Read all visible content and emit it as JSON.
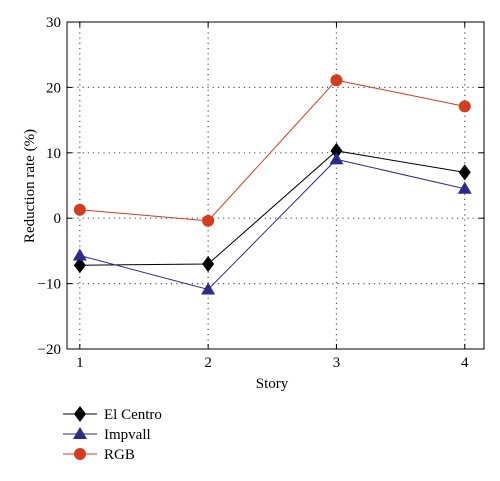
{
  "chart_data": {
    "type": "line",
    "title": "",
    "xlabel": "Story",
    "ylabel": "Reduction rate (%)",
    "x": [
      1,
      2,
      3,
      4
    ],
    "xlim": [
      0.9,
      4.15
    ],
    "ylim": [
      -20,
      30
    ],
    "xticks": [
      "1",
      "2",
      "3",
      "4"
    ],
    "yticks": [
      "30",
      "20",
      "10",
      "0",
      "−10",
      "−20"
    ],
    "grid": true,
    "legend_position": "below",
    "series": [
      {
        "name": "El Centro",
        "values": [
          -7.2,
          -7.0,
          10.3,
          7.0
        ],
        "color": "#000000",
        "marker": "diamond"
      },
      {
        "name": "Impvall",
        "values": [
          -5.7,
          -10.9,
          9.0,
          4.5
        ],
        "color": "#2e2a8c",
        "marker": "triangle"
      },
      {
        "name": "RGB",
        "values": [
          1.3,
          -0.4,
          21.1,
          17.1
        ],
        "color": "#d53b1f",
        "marker": "circle"
      }
    ]
  }
}
